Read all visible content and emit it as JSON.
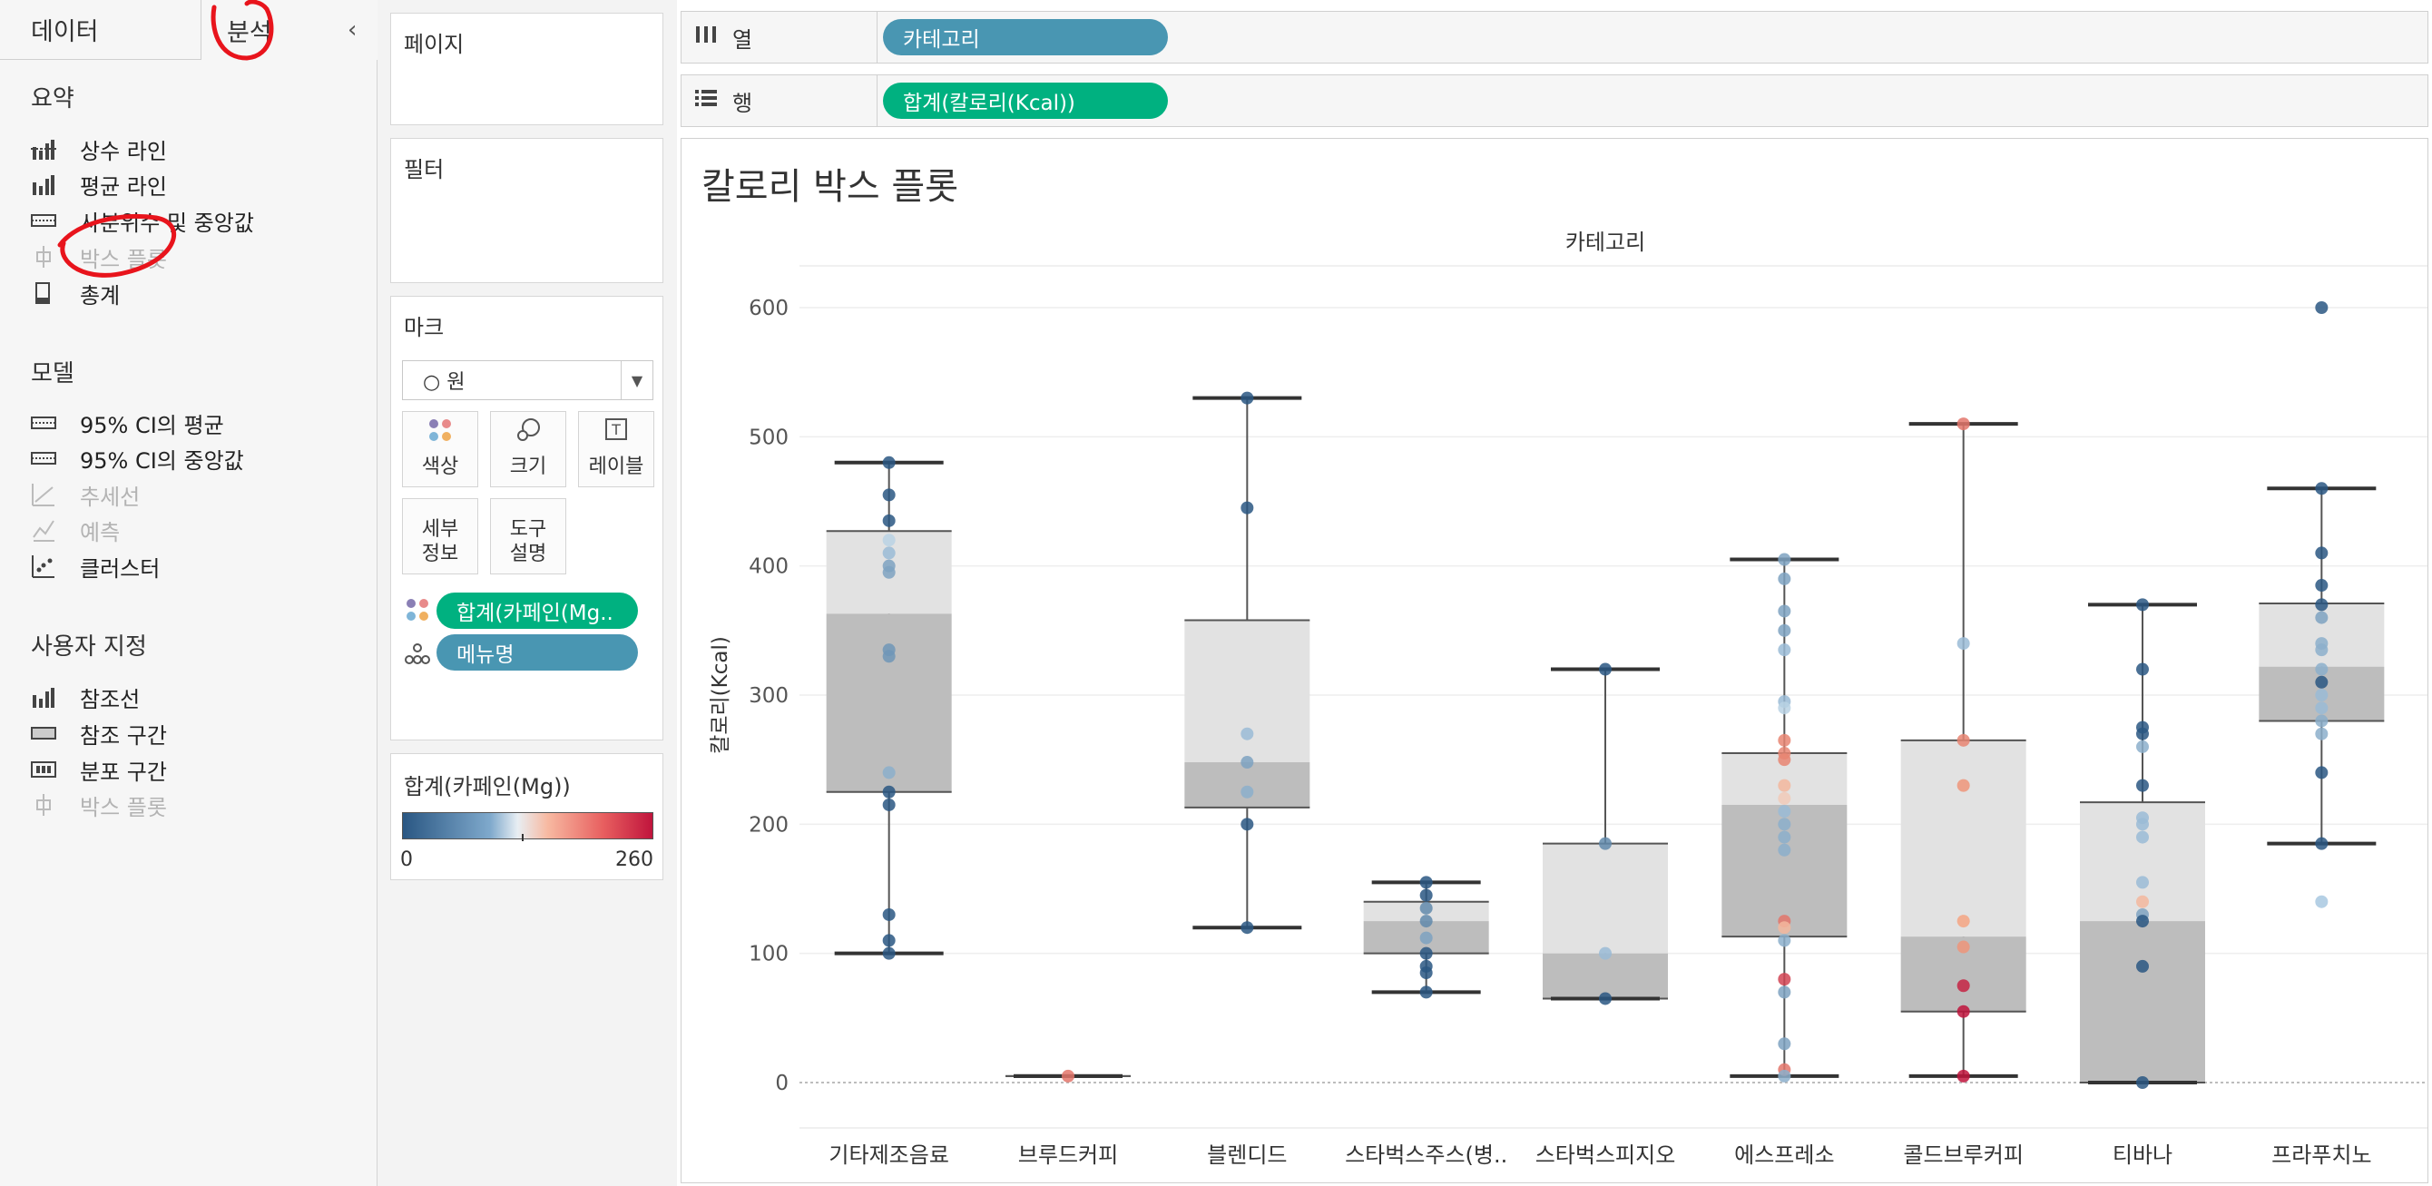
{
  "sidebar": {
    "tabs": [
      {
        "label": "데이터"
      },
      {
        "label": "분석"
      }
    ],
    "collapse_icon": "chevron-left-icon",
    "sections": [
      {
        "title": "요약",
        "items": [
          {
            "label": "상수 라인",
            "icon": "constant-line-icon",
            "enabled": true
          },
          {
            "label": "평균 라인",
            "icon": "average-line-icon",
            "enabled": true
          },
          {
            "label": "사분위수 및 중앙값",
            "icon": "quartile-icon",
            "enabled": true
          },
          {
            "label": "박스 플롯",
            "icon": "box-plot-icon",
            "enabled": false
          },
          {
            "label": "총계",
            "icon": "totals-icon",
            "enabled": true
          }
        ]
      },
      {
        "title": "모델",
        "items": [
          {
            "label": "95% CI의 평균",
            "icon": "ci-mean-icon",
            "enabled": true
          },
          {
            "label": "95% CI의 중앙값",
            "icon": "ci-median-icon",
            "enabled": true
          },
          {
            "label": "추세선",
            "icon": "trend-line-icon",
            "enabled": false
          },
          {
            "label": "예측",
            "icon": "forecast-icon",
            "enabled": false
          },
          {
            "label": "클러스터",
            "icon": "cluster-icon",
            "enabled": true
          }
        ]
      },
      {
        "title": "사용자 지정",
        "items": [
          {
            "label": "참조선",
            "icon": "reference-line-icon",
            "enabled": true
          },
          {
            "label": "참조 구간",
            "icon": "reference-band-icon",
            "enabled": true
          },
          {
            "label": "분포 구간",
            "icon": "distribution-band-icon",
            "enabled": true
          },
          {
            "label": "박스 플롯",
            "icon": "box-plot-icon",
            "enabled": false
          }
        ]
      }
    ]
  },
  "pages": {
    "title": "페이지"
  },
  "filters": {
    "title": "필터"
  },
  "marks": {
    "title": "마크",
    "type_label": "○ 원",
    "buttons": [
      {
        "label": "색상",
        "icon": "color-icon"
      },
      {
        "label": "크기",
        "icon": "size-icon"
      },
      {
        "label": "레이블",
        "icon": "label-icon"
      },
      {
        "label": "세부\n정보",
        "icon": "detail-icon"
      },
      {
        "label": "도구\n설명",
        "icon": "tooltip-icon"
      }
    ],
    "pills": [
      {
        "label": "합계(카페인(Mg..",
        "icon": "color-dots-icon",
        "color": "#00b180"
      },
      {
        "label": "메뉴명",
        "icon": "detail-dots-icon",
        "color": "#4996b2"
      }
    ]
  },
  "legend": {
    "title": "합계(카페인(Mg))",
    "min": "0",
    "max": "260",
    "colors": [
      "#2a5783",
      "#a8c8e0",
      "#f4a582",
      "#c0143c"
    ]
  },
  "shelves": {
    "columns": {
      "label": "열",
      "pill": "카테고리"
    },
    "rows": {
      "label": "행",
      "pill": "합계(칼로리(Kcal))"
    }
  },
  "chart_data": {
    "type": "box-plot",
    "title": "칼로리 박스 플롯",
    "header": "카테고리",
    "ylabel": "칼로리(Kcal)",
    "ylim": [
      0,
      600
    ],
    "yticks": [
      0,
      100,
      200,
      300,
      400,
      500,
      600
    ],
    "grid": true,
    "categories": [
      "기타제조음료",
      "브루드커피",
      "블렌디드",
      "스타벅스주스(병..",
      "스타벅스피지오",
      "에스프레소",
      "콜드브루커피",
      "티바나",
      "프라푸치노"
    ],
    "boxes": [
      {
        "whisker_low": 100,
        "q1": 225,
        "median": 363,
        "q3": 427,
        "whisker_high": 480
      },
      {
        "whisker_low": 5,
        "q1": 5,
        "median": 5,
        "q3": 5,
        "whisker_high": 5
      },
      {
        "whisker_low": 120,
        "q1": 213,
        "median": 248,
        "q3": 358,
        "whisker_high": 530
      },
      {
        "whisker_low": 70,
        "q1": 100,
        "median": 125,
        "q3": 140,
        "whisker_high": 155
      },
      {
        "whisker_low": 65,
        "q1": 65,
        "median": 100,
        "q3": 185,
        "whisker_high": 320
      },
      {
        "whisker_low": 5,
        "q1": 113,
        "median": 215,
        "q3": 255,
        "whisker_high": 405
      },
      {
        "whisker_low": 5,
        "q1": 55,
        "median": 113,
        "q3": 265,
        "whisker_high": 510
      },
      {
        "whisker_low": 0,
        "q1": 0,
        "median": 125,
        "q3": 217,
        "whisker_high": 370
      },
      {
        "whisker_low": 185,
        "q1": 280,
        "median": 322,
        "q3": 371,
        "whisker_high": 460
      }
    ],
    "points": [
      [
        [
          480,
          0
        ],
        [
          455,
          0
        ],
        [
          435,
          0
        ],
        [
          420,
          100
        ],
        [
          410,
          80
        ],
        [
          400,
          60
        ],
        [
          395,
          60
        ],
        [
          335,
          50
        ],
        [
          330,
          50
        ],
        [
          240,
          70
        ],
        [
          225,
          0
        ],
        [
          215,
          0
        ],
        [
          130,
          0
        ],
        [
          110,
          0
        ],
        [
          100,
          0
        ]
      ],
      [
        [
          5,
          200
        ]
      ],
      [
        [
          530,
          0
        ],
        [
          445,
          0
        ],
        [
          270,
          80
        ],
        [
          248,
          60
        ],
        [
          225,
          70
        ],
        [
          200,
          0
        ],
        [
          120,
          0
        ]
      ],
      [
        [
          155,
          0
        ],
        [
          145,
          0
        ],
        [
          135,
          40
        ],
        [
          125,
          40
        ],
        [
          112,
          60
        ],
        [
          100,
          0
        ],
        [
          90,
          0
        ],
        [
          85,
          0
        ],
        [
          70,
          0
        ]
      ],
      [
        [
          320,
          0
        ],
        [
          185,
          40
        ],
        [
          100,
          80
        ],
        [
          65,
          0
        ]
      ],
      [
        [
          405,
          60
        ],
        [
          390,
          60
        ],
        [
          365,
          60
        ],
        [
          350,
          60
        ],
        [
          335,
          80
        ],
        [
          295,
          80
        ],
        [
          290,
          100
        ],
        [
          265,
          190
        ],
        [
          255,
          190
        ],
        [
          250,
          190
        ],
        [
          230,
          160
        ],
        [
          220,
          150
        ],
        [
          210,
          80
        ],
        [
          200,
          70
        ],
        [
          190,
          70
        ],
        [
          180,
          70
        ],
        [
          125,
          200
        ],
        [
          120,
          160
        ],
        [
          110,
          70
        ],
        [
          80,
          230
        ],
        [
          70,
          60
        ],
        [
          30,
          60
        ],
        [
          10,
          200
        ],
        [
          5,
          70
        ]
      ],
      [
        [
          510,
          200
        ],
        [
          340,
          80
        ],
        [
          265,
          190
        ],
        [
          230,
          180
        ],
        [
          125,
          170
        ],
        [
          105,
          180
        ],
        [
          75,
          250
        ],
        [
          55,
          260
        ],
        [
          5,
          260
        ]
      ],
      [
        [
          370,
          0
        ],
        [
          320,
          0
        ],
        [
          275,
          0
        ],
        [
          270,
          0
        ],
        [
          260,
          70
        ],
        [
          230,
          0
        ],
        [
          205,
          80
        ],
        [
          200,
          80
        ],
        [
          190,
          80
        ],
        [
          155,
          80
        ],
        [
          140,
          160
        ],
        [
          130,
          60
        ],
        [
          125,
          0
        ],
        [
          90,
          0
        ],
        [
          0,
          0
        ]
      ],
      [
        [
          600,
          0
        ],
        [
          460,
          0
        ],
        [
          410,
          0
        ],
        [
          385,
          0
        ],
        [
          370,
          0
        ],
        [
          360,
          60
        ],
        [
          340,
          70
        ],
        [
          335,
          70
        ],
        [
          320,
          70
        ],
        [
          310,
          0
        ],
        [
          300,
          80
        ],
        [
          290,
          80
        ],
        [
          280,
          70
        ],
        [
          270,
          70
        ],
        [
          240,
          0
        ],
        [
          185,
          0
        ],
        [
          140,
          90
        ]
      ]
    ]
  }
}
